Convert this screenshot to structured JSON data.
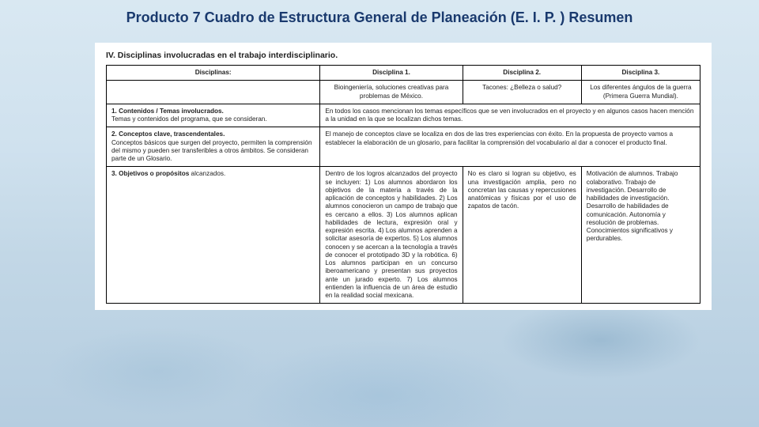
{
  "title": "Producto 7 Cuadro de Estructura General de Planeación (E. I. P. ) Resumen",
  "section_header": "IV. Disciplinas involucradas en el trabajo interdisciplinario.",
  "colors": {
    "title_color": "#1a3a6e",
    "sheet_bg": "#ffffff",
    "border": "#000000",
    "bg_top": "#d9e8f2",
    "bg_bottom": "#b5cde0"
  },
  "typography": {
    "title_fontsize_pt": 14,
    "section_fontsize_pt": 8,
    "cell_fontsize_pt": 6,
    "font_family": "Arial"
  },
  "table": {
    "type": "table",
    "columns": [
      "Disciplinas:",
      "Disciplina 1.",
      "Disciplina 2.",
      "Disciplina 3."
    ],
    "col_widths_pct": [
      36,
      24,
      20,
      20
    ],
    "header_row2": {
      "c1": "",
      "c2": "Bioingeniería, soluciones creativas para problemas de México.",
      "c3": "Tacones: ¿Belleza o salud?",
      "c4": "Los diferentes ángulos de la guerra (Primera Guerra Mundial)."
    },
    "rows": [
      {
        "label_bold": "1. Contenidos / Temas involucrados.",
        "label_rest": "Temas y contenidos del programa, que se consideran.",
        "cell_merged": "En todos los casos mencionan los temas específicos que se ven involucrados en el proyecto y en algunos casos hacen mención a la unidad en la que se localizan dichos temas.",
        "merge_cols": 3
      },
      {
        "label_bold": "2. Conceptos clave, trascendentales.",
        "label_rest": "Conceptos básicos que surgen del proyecto, permiten la comprensión del mismo y pueden ser transferibles a otros ámbitos. Se consideran parte de un Glosario.",
        "cell_merged": "El manejo de conceptos clave se localiza en dos de las tres experiencias con éxito. En la propuesta de proyecto vamos a establecer la elaboración de un glosario, para facilitar la comprensión del vocabulario al dar a conocer el producto final.",
        "merge_cols": 3
      },
      {
        "label_bold": "3. Objetivos o propósitos",
        "label_rest": " alcanzados.",
        "c2": "Dentro de los logros alcanzados del proyecto se incluyen: 1) Los alumnos abordaron los objetivos de la materia a través de la aplicación de conceptos y habilidades. 2) Los alumnos conocieron un campo de trabajo que es cercano a ellos. 3) Los alumnos aplican habilidades de lectura, expresión oral y expresión escrita. 4) Los alumnos aprenden a solicitar asesoría de expertos. 5) Los alumnos conocen y se acercan a la tecnología a través de conocer el prototipado 3D y la robótica. 6) Los alumnos participan en un concurso iberoamericano y presentan sus proyectos ante un jurado experto. 7) Los alumnos entienden la influencia de un área de estudio en la realidad social mexicana.",
        "c3": "No es claro si logran su objetivo, es una investigación amplia, pero no concretan las causas y repercusiones anatómicas y físicas por el uso de zapatos de tacón.",
        "c4": "Motivación de alumnos. Trabajo colaborativo. Trabajo de investigación. Desarrollo de habilidades de investigación. Desarrollo de habilidades de comunicación. Autonomía y resolución de problemas. Conocimientos significativos y perdurables."
      }
    ]
  }
}
